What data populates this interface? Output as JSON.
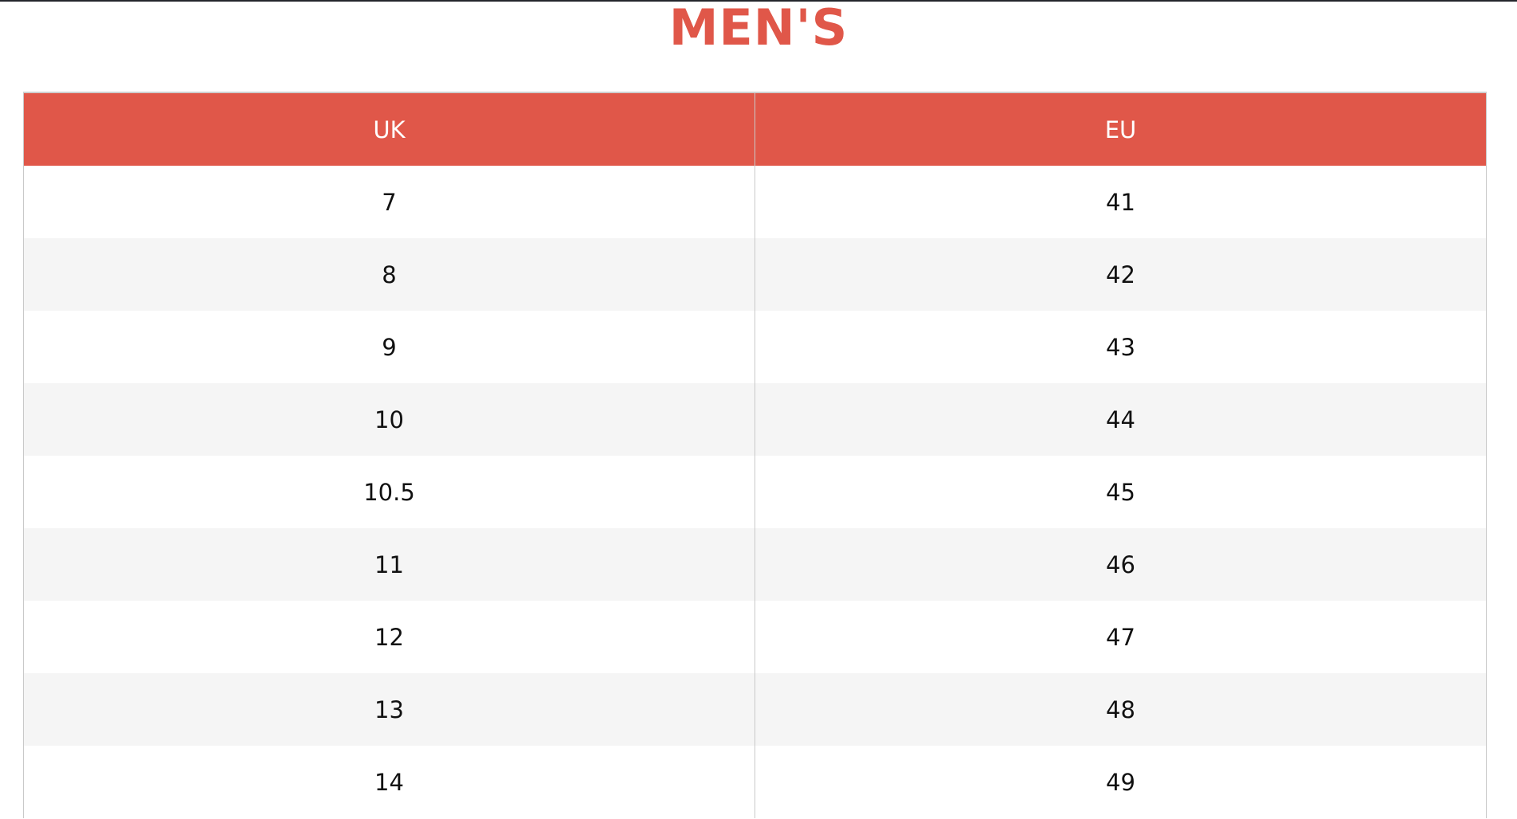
{
  "title": "MEN'S",
  "table": {
    "headers": [
      "UK",
      "EU"
    ],
    "rows": [
      [
        "7",
        "41"
      ],
      [
        "8",
        "42"
      ],
      [
        "9",
        "43"
      ],
      [
        "10",
        "44"
      ],
      [
        "10.5",
        "45"
      ],
      [
        "11",
        "46"
      ],
      [
        "12",
        "47"
      ],
      [
        "13",
        "48"
      ],
      [
        "14",
        "49"
      ]
    ]
  },
  "colors": {
    "accent": "#e05749",
    "stripe": "#f5f5f5"
  }
}
